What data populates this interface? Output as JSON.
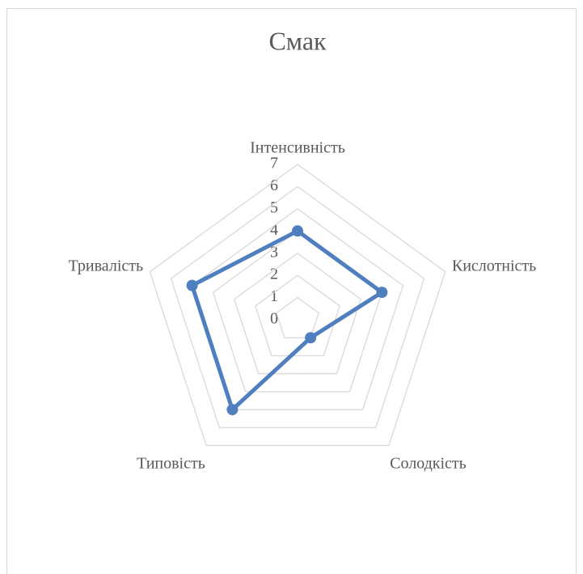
{
  "chart_data": {
    "type": "radar",
    "title": "Смак",
    "categories": [
      "Інтенсивність",
      "Кислотність",
      "Солодкість",
      "Типовість",
      "Тривалість"
    ],
    "series": [
      {
        "name": "Смак",
        "color": "#4f7fbf",
        "values": [
          4,
          4,
          1,
          5,
          5
        ]
      }
    ],
    "rlim": [
      0,
      7
    ],
    "rticks": [
      0,
      1,
      2,
      3,
      4,
      5,
      6,
      7
    ],
    "grid": true
  }
}
